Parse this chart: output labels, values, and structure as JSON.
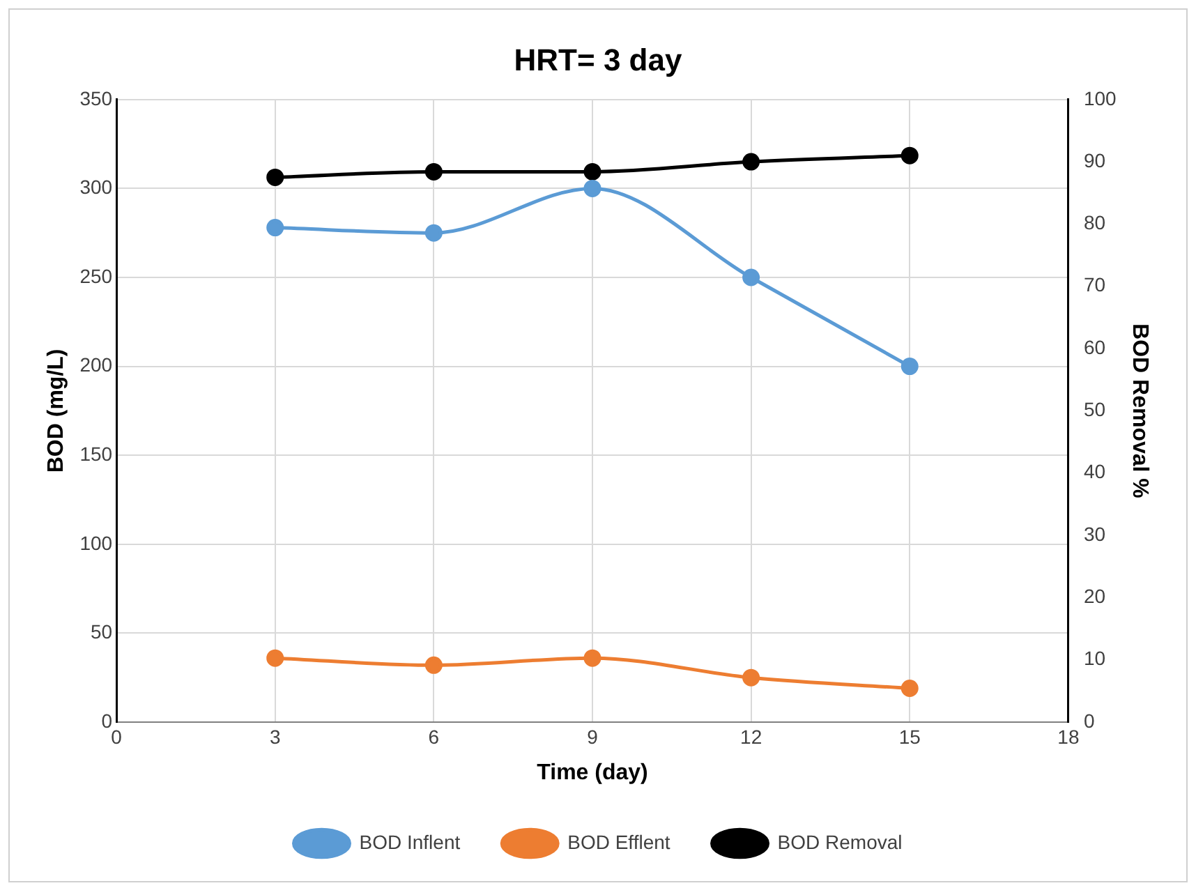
{
  "chart_data": {
    "type": "line",
    "title": "HRT= 3 day",
    "xlabel": "Time (day)",
    "ylabel": "BOD (mg/L)",
    "y2label": "BOD Removal %",
    "x": [
      3,
      6,
      9,
      12,
      15
    ],
    "xlim": [
      0,
      18
    ],
    "xticks": [
      0,
      3,
      6,
      9,
      12,
      15,
      18
    ],
    "ylim": [
      0,
      350
    ],
    "yticks": [
      0,
      50,
      100,
      150,
      200,
      250,
      300,
      350
    ],
    "y2lim": [
      0,
      100
    ],
    "y2ticks": [
      0,
      10,
      20,
      30,
      40,
      50,
      60,
      70,
      80,
      90,
      100
    ],
    "grid": true,
    "legend": "bottom",
    "marker": "circle",
    "line_style": "solid",
    "series": [
      {
        "name": "BOD Inflent",
        "color": "#5b9bd5",
        "values": [
          278,
          275,
          300,
          250,
          200
        ]
      },
      {
        "name": "BOD Efflent",
        "color": "#ed7d31",
        "values": [
          36,
          32,
          36,
          25,
          19
        ]
      },
      {
        "name": "BOD Removal",
        "color": "#000000",
        "axis": "y2",
        "values": [
          87.5,
          88.4,
          88.4,
          90,
          91
        ]
      }
    ]
  }
}
